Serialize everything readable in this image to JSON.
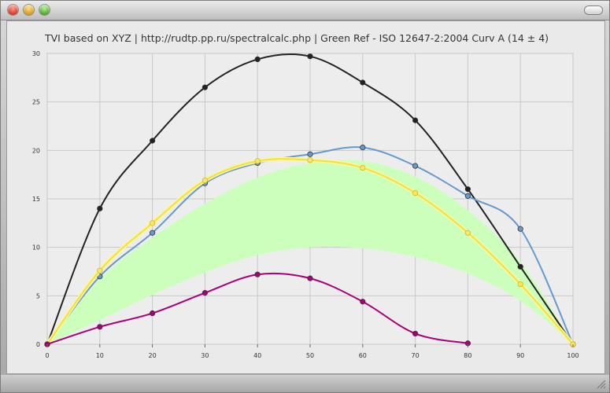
{
  "chart_data": {
    "type": "line",
    "title": "TVI based on XYZ | http://rudtp.pp.ru/spectralcalc.php | Green Ref - ISO 12647-2:2004 Curv A (14 ± 4)",
    "xlabel": "",
    "ylabel": "",
    "xlim": [
      0,
      100
    ],
    "ylim": [
      0,
      30
    ],
    "x_ticks": [
      0,
      10,
      20,
      30,
      40,
      50,
      60,
      70,
      80,
      90,
      100
    ],
    "y_ticks": [
      0,
      5,
      10,
      15,
      20,
      25,
      30
    ],
    "y_tick_labels": [
      "0",
      "5",
      "10",
      "15",
      "20",
      "25",
      "30"
    ],
    "grid": true,
    "band": {
      "color": "#ccffbb",
      "x": [
        0,
        10,
        20,
        30,
        40,
        50,
        60,
        70,
        80,
        90,
        100
      ],
      "lower": [
        0,
        2.5,
        5.1,
        7.4,
        9.2,
        10.0,
        9.9,
        9.0,
        7.3,
        4.5,
        0
      ],
      "upper": [
        0,
        6.7,
        11.0,
        14.5,
        17.2,
        18.7,
        18.9,
        17.3,
        13.8,
        8.5,
        0
      ]
    },
    "series": [
      {
        "color": "#222222",
        "x": [
          0,
          10,
          20,
          30,
          40,
          50,
          60,
          70,
          80,
          90,
          100
        ],
        "y": [
          0,
          14.0,
          21.0,
          26.5,
          29.4,
          29.7,
          27.0,
          23.1,
          16.0,
          8.0,
          0
        ]
      },
      {
        "color": "#6699cc",
        "x": [
          0,
          10,
          20,
          30,
          40,
          50,
          60,
          70,
          80,
          90,
          100
        ],
        "y": [
          0,
          7.0,
          11.5,
          16.6,
          18.7,
          19.6,
          20.3,
          18.4,
          15.3,
          11.9,
          0
        ]
      },
      {
        "color": "#f0e040",
        "x": [
          0,
          10,
          20,
          30,
          40,
          50,
          60,
          70,
          80,
          90,
          100
        ],
        "y": [
          0,
          7.6,
          12.5,
          16.9,
          18.9,
          19.0,
          18.2,
          15.6,
          11.5,
          6.2,
          0
        ]
      },
      {
        "color": "#aa0077",
        "x": [
          0,
          10,
          20,
          30,
          40,
          50,
          60,
          70,
          80
        ],
        "y": [
          0,
          1.8,
          3.2,
          5.3,
          7.2,
          6.8,
          4.4,
          1.1,
          0.1
        ]
      }
    ]
  }
}
